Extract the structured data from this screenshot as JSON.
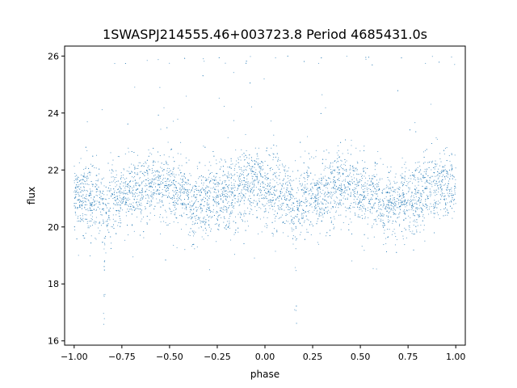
{
  "chart_data": {
    "type": "scatter",
    "title": "1SWASPJ214555.46+003723.8 Period 4685431.0s",
    "xlabel": "phase",
    "ylabel": "flux",
    "xlim": [
      -1.05,
      1.05
    ],
    "ylim": [
      15.85,
      26.35
    ],
    "xticks": [
      -1.0,
      -0.75,
      -0.5,
      -0.25,
      0.0,
      0.25,
      0.5,
      0.75,
      1.0
    ],
    "xtick_labels": [
      "−1.00",
      "−0.75",
      "−0.50",
      "−0.25",
      "0.00",
      "0.25",
      "0.50",
      "0.75",
      "1.00"
    ],
    "yticks": [
      16,
      18,
      20,
      22,
      24,
      26
    ],
    "ytick_labels": [
      "16",
      "18",
      "20",
      "22",
      "24",
      "26"
    ],
    "grid": false,
    "marker_color": "#1f77b4",
    "series": [
      {
        "envelope_note": "",
        "x": [
          -1.0,
          -0.95,
          -0.9,
          -0.87,
          -0.85,
          -0.84,
          -0.8,
          -0.75,
          -0.7,
          -0.65,
          -0.6,
          -0.55,
          -0.5,
          -0.45,
          -0.4,
          -0.38,
          -0.35,
          -0.3,
          -0.25,
          -0.2,
          -0.15,
          -0.1,
          -0.05,
          0.0,
          0.05,
          0.1,
          0.13,
          0.15,
          0.16,
          0.2,
          0.25,
          0.3,
          0.35,
          0.4,
          0.45,
          0.5,
          0.55,
          0.6,
          0.62,
          0.65,
          0.7,
          0.75,
          0.8,
          0.85,
          0.9,
          0.95,
          1.0
        ],
        "y_center": [
          21.2,
          21.0,
          21.0,
          21.0,
          20.5,
          20.5,
          21.0,
          21.1,
          21.2,
          21.3,
          21.5,
          21.5,
          21.3,
          21.2,
          21.0,
          20.5,
          20.8,
          20.9,
          21.0,
          21.1,
          21.2,
          21.5,
          21.5,
          21.3,
          21.2,
          21.0,
          21.0,
          20.5,
          20.5,
          21.0,
          21.1,
          21.2,
          21.3,
          21.5,
          21.5,
          21.3,
          21.2,
          21.0,
          20.5,
          20.8,
          20.9,
          21.0,
          21.1,
          21.2,
          21.5,
          21.5,
          21.3
        ]
      }
    ],
    "y_spread": 1.1,
    "dip_phases": [
      -0.84,
      0.16
    ],
    "dip_min_flux": 16.4,
    "outlier_max_flux": 26.0
  }
}
